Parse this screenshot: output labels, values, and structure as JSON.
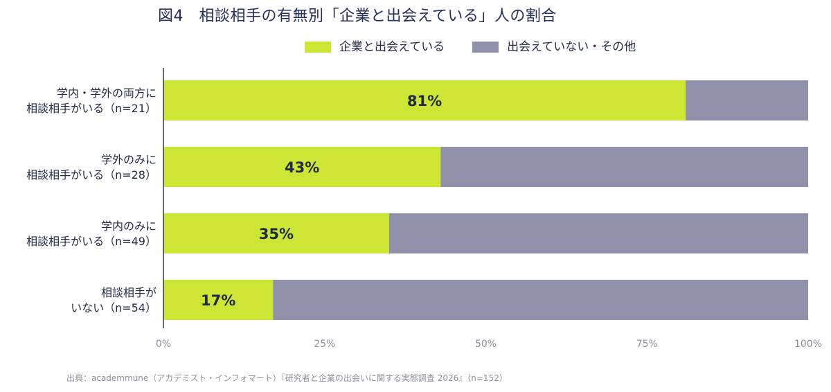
{
  "title": "図4　相談相手の有無別「企業と出会えている」人の割合",
  "source": "出典：academmune（アカデミスト・インフォマート）『研究者と企業の出会いに関する実態調査 2026』（n=152）",
  "colors": {
    "met": "#cde635",
    "other": "#8f91aa",
    "axis": "#333a4d",
    "tick_text": "#8a8f99",
    "title_text": "#252f5c",
    "label_text": "#1f2a44",
    "value_text": "#1f2a44"
  },
  "chart_data": {
    "type": "bar",
    "orientation": "horizontal",
    "stacked": true,
    "title": "図4　相談相手の有無別「企業と出会えている」人の割合",
    "categories": [
      [
        "学内・学外の両方に",
        "相談相手がいる（n=21）"
      ],
      [
        "学外のみに",
        "相談相手がいる（n=28）"
      ],
      [
        "学内のみに",
        "相談相手がいる（n=49）"
      ],
      [
        "相談相手が",
        "いない（n=54）"
      ]
    ],
    "series": [
      {
        "name": "企業と出会えている",
        "values": [
          81,
          43,
          35,
          17
        ],
        "labels": [
          "81%",
          "43%",
          "35%",
          "17%"
        ]
      },
      {
        "name": "出会えていない・その他",
        "values": [
          19,
          57,
          65,
          83
        ]
      }
    ],
    "xlim": [
      0,
      100
    ],
    "xticks": [
      "0%",
      "25%",
      "50%",
      "75%",
      "100%"
    ],
    "xlabel": "",
    "ylabel": "",
    "grid": false,
    "legend_position": "top-center"
  }
}
